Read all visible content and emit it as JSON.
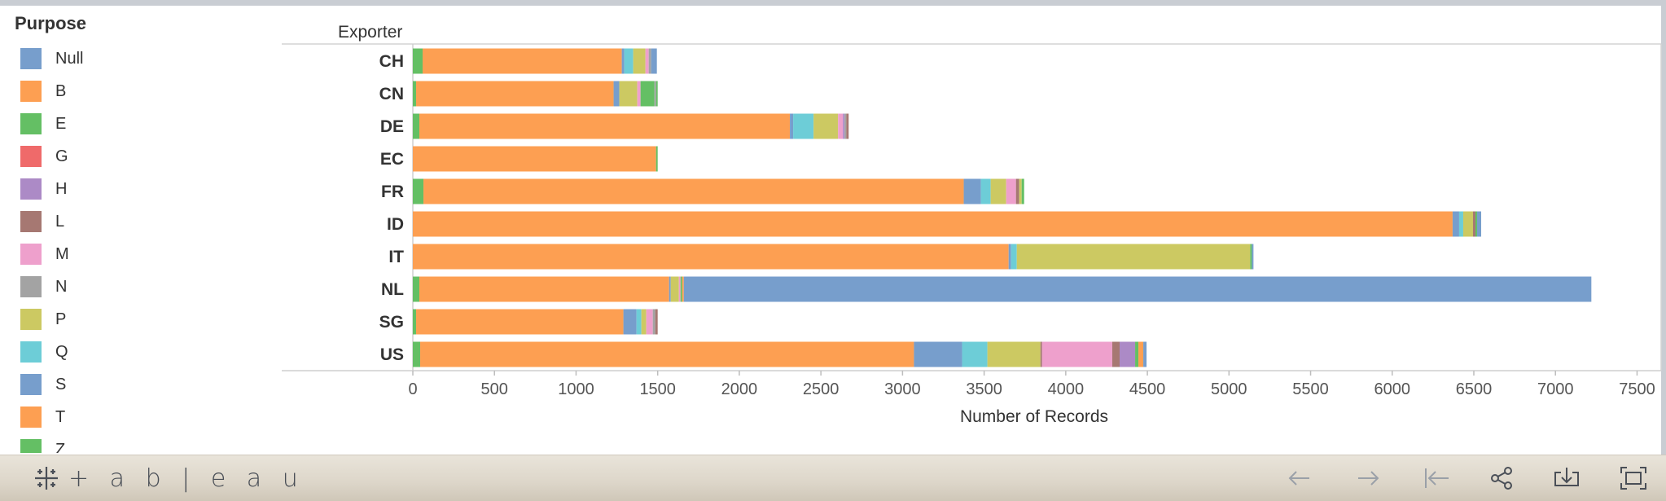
{
  "legend": {
    "title": "Purpose",
    "items": [
      {
        "label": "Null",
        "color": "#779ecc"
      },
      {
        "label": "B",
        "color": "#fd9f52"
      },
      {
        "label": "E",
        "color": "#64bf64"
      },
      {
        "label": "G",
        "color": "#ef6a6a"
      },
      {
        "label": "H",
        "color": "#ac8ac6"
      },
      {
        "label": "L",
        "color": "#a67872"
      },
      {
        "label": "M",
        "color": "#eea0cc"
      },
      {
        "label": "N",
        "color": "#a3a3a3"
      },
      {
        "label": "P",
        "color": "#ccc962"
      },
      {
        "label": "Q",
        "color": "#6dcdd7"
      },
      {
        "label": "S",
        "color": "#779ecc"
      },
      {
        "label": "T",
        "color": "#fd9f52"
      },
      {
        "label": "Z",
        "color": "#64bf64"
      }
    ]
  },
  "chart_data": {
    "type": "bar",
    "orientation": "horizontal",
    "stacked": true,
    "category_header": "Exporter",
    "xlabel": "Number of Records",
    "xlim": [
      0,
      7500
    ],
    "x_ticks": [
      "0",
      "500",
      "1000",
      "1500",
      "2000",
      "2500",
      "3000",
      "3500",
      "4000",
      "4500",
      "5000",
      "5500",
      "6000",
      "6500",
      "7000",
      "7500"
    ],
    "grid": false,
    "legend_position": "left",
    "categories": [
      "CH",
      "CN",
      "DE",
      "EC",
      "FR",
      "ID",
      "IT",
      "NL",
      "SG",
      "US"
    ],
    "rows": [
      {
        "category": "CH",
        "segments": [
          {
            "purpose": "E",
            "value": 60
          },
          {
            "purpose": "B",
            "value": 1220
          },
          {
            "purpose": "S",
            "value": 15
          },
          {
            "purpose": "Q",
            "value": 55
          },
          {
            "purpose": "P",
            "value": 75
          },
          {
            "purpose": "M",
            "value": 20
          },
          {
            "purpose": "N",
            "value": 15
          },
          {
            "purpose": "S",
            "value": 35
          }
        ]
      },
      {
        "category": "CN",
        "segments": [
          {
            "purpose": "E",
            "value": 20
          },
          {
            "purpose": "B",
            "value": 1210
          },
          {
            "purpose": "S",
            "value": 35
          },
          {
            "purpose": "P",
            "value": 110
          },
          {
            "purpose": "M",
            "value": 20
          },
          {
            "purpose": "E",
            "value": 85
          },
          {
            "purpose": "N",
            "value": 10
          },
          {
            "purpose": "E",
            "value": 10
          }
        ]
      },
      {
        "category": "DE",
        "segments": [
          {
            "purpose": "E",
            "value": 40
          },
          {
            "purpose": "B",
            "value": 2270
          },
          {
            "purpose": "S",
            "value": 20
          },
          {
            "purpose": "Q",
            "value": 125
          },
          {
            "purpose": "P",
            "value": 150
          },
          {
            "purpose": "M",
            "value": 30
          },
          {
            "purpose": "H",
            "value": 10
          },
          {
            "purpose": "N",
            "value": 10
          },
          {
            "purpose": "L",
            "value": 15
          }
        ]
      },
      {
        "category": "EC",
        "segments": [
          {
            "purpose": "B",
            "value": 1490
          },
          {
            "purpose": "E",
            "value": 10
          }
        ]
      },
      {
        "category": "FR",
        "segments": [
          {
            "purpose": "E",
            "value": 65
          },
          {
            "purpose": "B",
            "value": 3310
          },
          {
            "purpose": "S",
            "value": 105
          },
          {
            "purpose": "Q",
            "value": 60
          },
          {
            "purpose": "P",
            "value": 95
          },
          {
            "purpose": "M",
            "value": 60
          },
          {
            "purpose": "L",
            "value": 20
          },
          {
            "purpose": "P",
            "value": 15
          },
          {
            "purpose": "E",
            "value": 15
          }
        ]
      },
      {
        "category": "ID",
        "segments": [
          {
            "purpose": "B",
            "value": 6370
          },
          {
            "purpose": "S",
            "value": 40
          },
          {
            "purpose": "Q",
            "value": 25
          },
          {
            "purpose": "P",
            "value": 60
          },
          {
            "purpose": "L",
            "value": 15
          },
          {
            "purpose": "E",
            "value": 10
          },
          {
            "purpose": "S",
            "value": 25
          }
        ]
      },
      {
        "category": "IT",
        "segments": [
          {
            "purpose": "B",
            "value": 3650
          },
          {
            "purpose": "S",
            "value": 15
          },
          {
            "purpose": "Q",
            "value": 35
          },
          {
            "purpose": "P",
            "value": 1430
          },
          {
            "purpose": "E",
            "value": 10
          },
          {
            "purpose": "S",
            "value": 10
          }
        ]
      },
      {
        "category": "NL",
        "segments": [
          {
            "purpose": "E",
            "value": 40
          },
          {
            "purpose": "B",
            "value": 1530
          },
          {
            "purpose": "S",
            "value": 10
          },
          {
            "purpose": "P",
            "value": 50
          },
          {
            "purpose": "M",
            "value": 10
          },
          {
            "purpose": "E",
            "value": 10
          },
          {
            "purpose": "T",
            "value": 10
          },
          {
            "purpose": "Null",
            "value": 5560
          }
        ]
      },
      {
        "category": "SG",
        "segments": [
          {
            "purpose": "E",
            "value": 20
          },
          {
            "purpose": "B",
            "value": 1270
          },
          {
            "purpose": "S",
            "value": 80
          },
          {
            "purpose": "Q",
            "value": 30
          },
          {
            "purpose": "P",
            "value": 30
          },
          {
            "purpose": "M",
            "value": 40
          },
          {
            "purpose": "N",
            "value": 15
          },
          {
            "purpose": "L",
            "value": 15
          }
        ]
      },
      {
        "category": "US",
        "segments": [
          {
            "purpose": "E",
            "value": 45
          },
          {
            "purpose": "B",
            "value": 3025
          },
          {
            "purpose": "S",
            "value": 295
          },
          {
            "purpose": "Q",
            "value": 155
          },
          {
            "purpose": "P",
            "value": 325
          },
          {
            "purpose": "L",
            "value": 10
          },
          {
            "purpose": "M",
            "value": 430
          },
          {
            "purpose": "L",
            "value": 45
          },
          {
            "purpose": "H",
            "value": 95
          },
          {
            "purpose": "E",
            "value": 20
          },
          {
            "purpose": "T",
            "value": 30
          },
          {
            "purpose": "S",
            "value": 20
          }
        ]
      }
    ]
  },
  "toolbar": {
    "logo_text": "+ a b | e a u",
    "buttons": [
      {
        "name": "undo-button",
        "icon": "arrow-left-icon"
      },
      {
        "name": "redo-button",
        "icon": "arrow-right-icon"
      },
      {
        "name": "revert-button",
        "icon": "revert-icon"
      },
      {
        "name": "share-button",
        "icon": "share-icon"
      },
      {
        "name": "download-button",
        "icon": "download-icon"
      },
      {
        "name": "fullscreen-button",
        "icon": "fullscreen-icon"
      }
    ]
  }
}
